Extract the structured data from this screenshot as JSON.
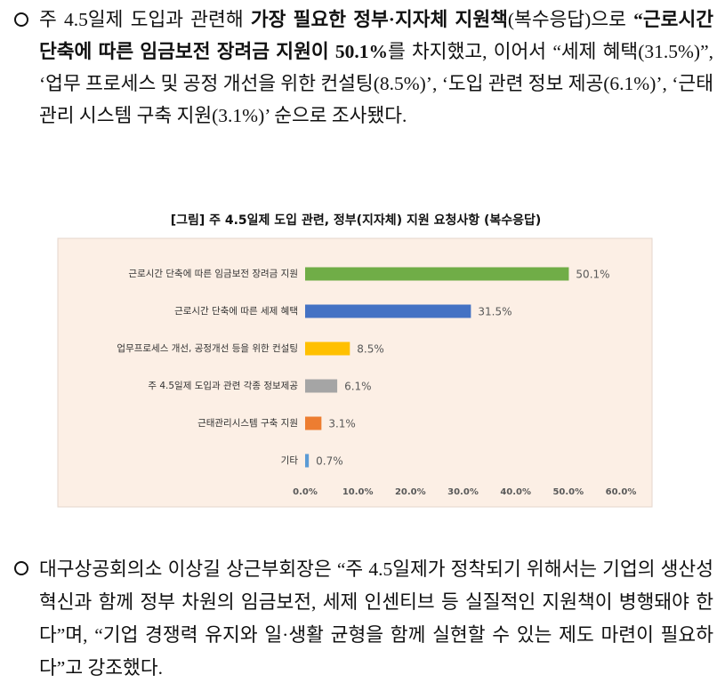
{
  "paragraphs": [
    {
      "runs": [
        {
          "text": "주 4.5일제 도입과 관련해 ",
          "bold": false
        },
        {
          "text": "가장 필요한 정부·지자체 지원책",
          "bold": true
        },
        {
          "text": "(복수응답)으로 ",
          "bold": false
        },
        {
          "text": "“근로시간 단축에 따른 임금보전 장려금 지원이 50.1%",
          "bold": true
        },
        {
          "text": "를 차지했고, 이어서 “세제 혜택(31.5%)”, ‘업무 프로세스 및 공정 개선을 위한 컨설팅(8.5%)’, ‘도입 관련 정보 제공(6.1%)’, ‘근태관리 시스템 구축 지원(3.1%)’ 순으로 조사됐다.",
          "bold": false
        }
      ]
    },
    {
      "runs": [
        {
          "text": "대구상공회의소 이상길 상근부회장은 “주 4.5일제가 정착되기 위해서는 기업의 생산성 혁신과 함께 정부 차원의 임금보전, 세제 인센티브 등 실질적인 지원책이 병행돼야 한다”며, “기업 경쟁력 유지와 일·생활 균형을 함께 실현할 수 있는 제도 마련이 필요하다”고 강조했다.",
          "bold": false
        }
      ]
    }
  ],
  "chart_data": {
    "type": "horizontal-bar",
    "title": "[그림] 주 4.5일제 도입 관련, 정부(지자체) 지원 요청사항 (복수응답)",
    "categories": [
      "근로시간 단축에 따른 임금보전 장려금 지원",
      "근로시간 단축에 따른 세제 혜택",
      "업무프로세스 개선, 공정개선 등을 위한 컨설팅",
      "주 4.5일제 도입과 관련 각종 정보제공",
      "근태관리시스템 구축 지원",
      "기타"
    ],
    "values": [
      50.1,
      31.5,
      8.5,
      6.1,
      3.1,
      0.7
    ],
    "value_labels": [
      "50.1%",
      "31.5%",
      "8.5%",
      "6.1%",
      "3.1%",
      "0.7%"
    ],
    "colors": [
      "#70ad47",
      "#4472c4",
      "#ffc000",
      "#a5a5a5",
      "#ed7d31",
      "#5b9bd5"
    ],
    "xlim": [
      0,
      60
    ],
    "xticks": [
      {
        "value": 0,
        "label": "0.0%"
      },
      {
        "value": 10,
        "label": "10.0%"
      },
      {
        "value": 20,
        "label": "20.0%"
      },
      {
        "value": 30,
        "label": "30.0%"
      },
      {
        "value": 40,
        "label": "40.0%"
      },
      {
        "value": 50,
        "label": "50.0%"
      },
      {
        "value": 60,
        "label": "60.0%"
      }
    ],
    "grid": false
  }
}
